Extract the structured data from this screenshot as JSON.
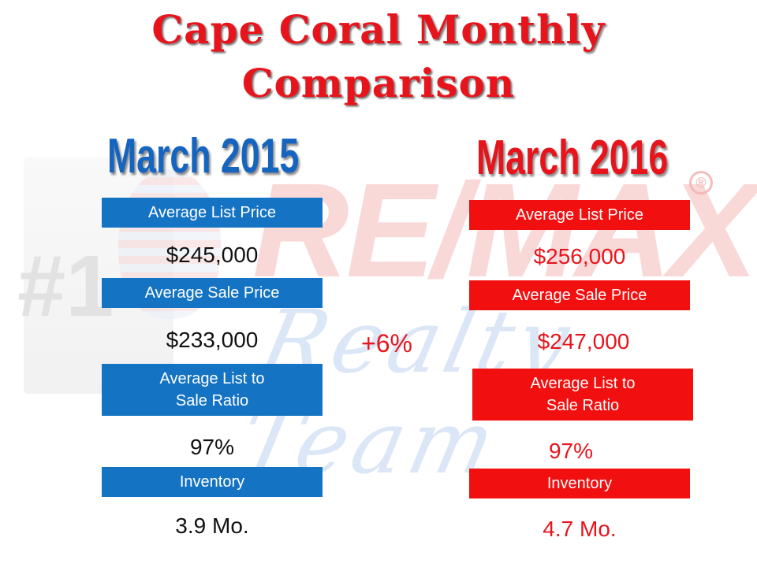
{
  "title": {
    "line1": "Cape Coral Monthly",
    "line2": "Comparison"
  },
  "watermark": {
    "brand": "RE/MAX",
    "sub": "Realty Team",
    "reg": "®",
    "hash": "#1"
  },
  "left": {
    "period": "March 2015",
    "avg_list_label": "Average List Price",
    "avg_list_value": "$245,000",
    "avg_sale_label": "Average Sale Price",
    "avg_sale_value": "$233,000",
    "ratio_label_line1": "Average List to",
    "ratio_label_line2": "Sale Ratio",
    "ratio_value": "97%",
    "inventory_label": "Inventory",
    "inventory_value": "3.9 Mo."
  },
  "right": {
    "period": "March 2016",
    "avg_list_label": "Average List Price",
    "avg_list_value": "$256,000",
    "avg_sale_label": "Average Sale Price",
    "avg_sale_value": "$247,000",
    "ratio_label_line1": "Average List to",
    "ratio_label_line2": "Sale Ratio",
    "ratio_value": "97%",
    "inventory_label": "Inventory",
    "inventory_value": "4.7 Mo."
  },
  "change": "+6%",
  "colors": {
    "red": "#e8141c",
    "blue": "#1573c4"
  }
}
